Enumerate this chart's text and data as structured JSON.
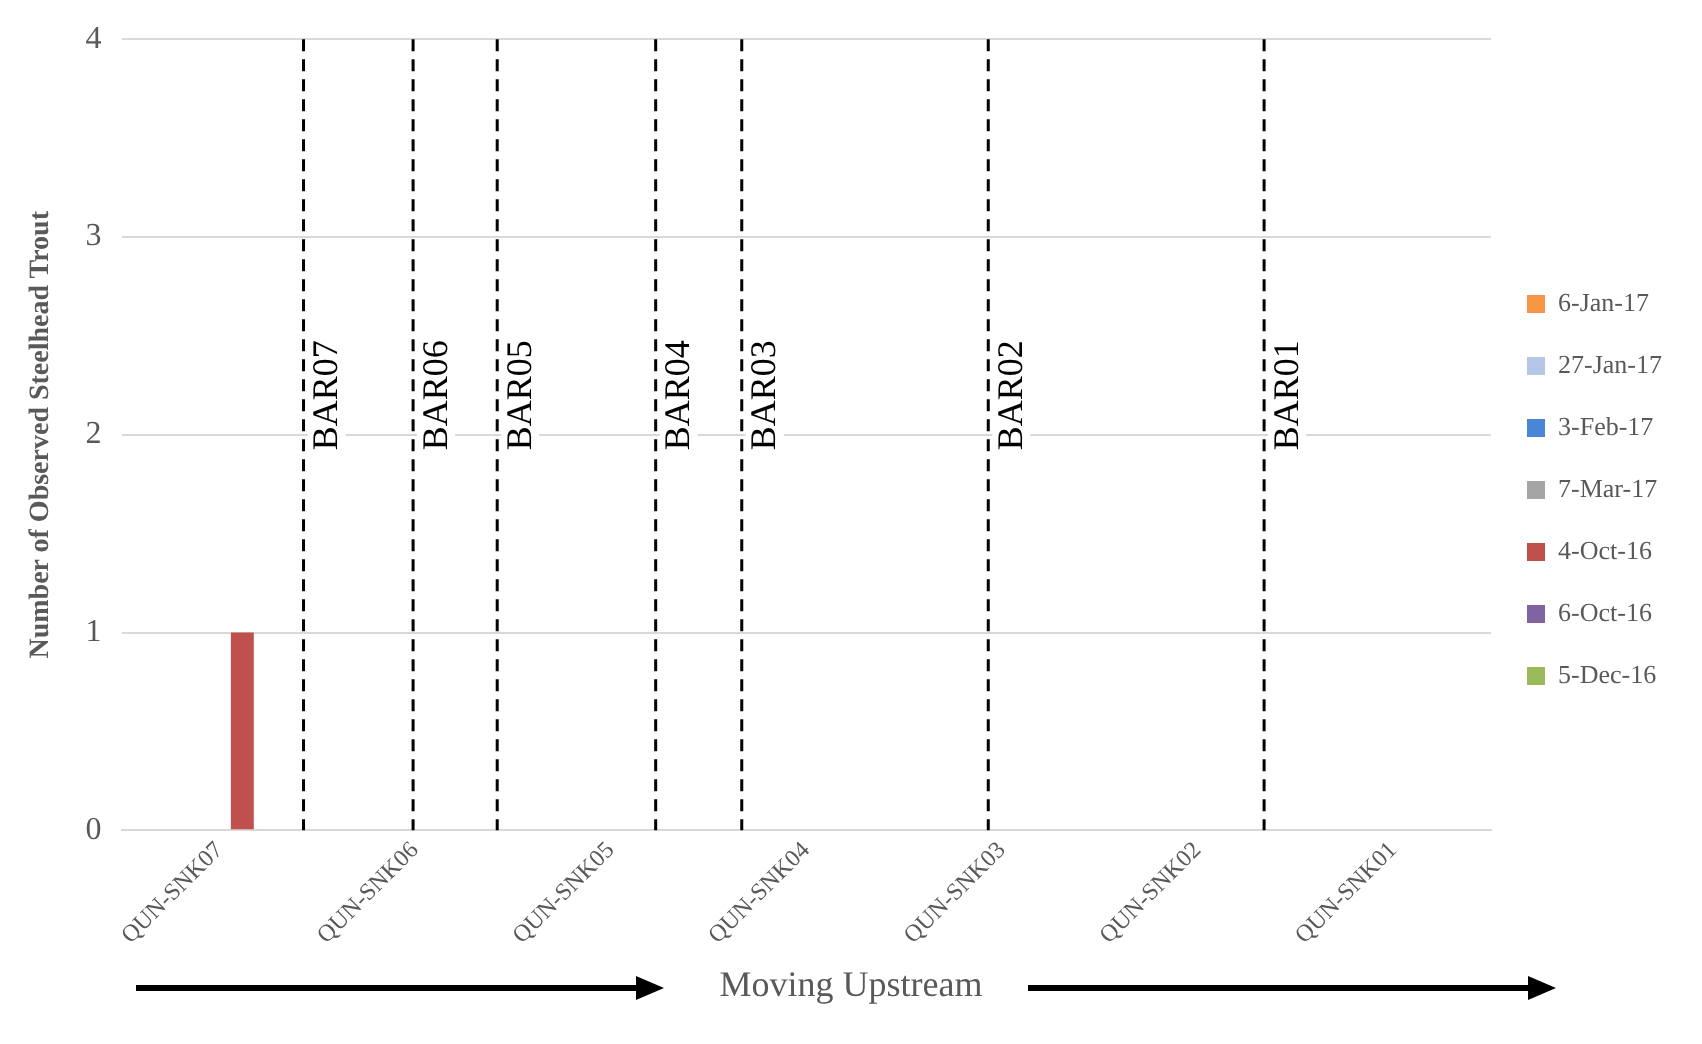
{
  "chart_data": {
    "type": "bar",
    "ylabel": "Number of Observed Steelhead Trout",
    "xlabel": "Moving Upstream",
    "categories": [
      "QUN-SNK07",
      "QUN-SNK06",
      "QUN-SNK05",
      "QUN-SNK04",
      "QUN-SNK03",
      "QUN-SNK02",
      "QUN-SNK01"
    ],
    "series": [
      {
        "name": "6-Jan-17",
        "color": "#f79646",
        "values": [
          0,
          0,
          0,
          0,
          0,
          0,
          0
        ]
      },
      {
        "name": "27-Jan-17",
        "color": "#b4c7e7",
        "values": [
          0,
          0,
          0,
          0,
          0,
          0,
          0
        ]
      },
      {
        "name": "3-Feb-17",
        "color": "#4a86d8",
        "values": [
          0,
          0,
          0,
          0,
          0,
          0,
          0
        ]
      },
      {
        "name": "7-Mar-17",
        "color": "#a5a5a5",
        "values": [
          0,
          0,
          0,
          0,
          0,
          0,
          0
        ]
      },
      {
        "name": "4-Oct-16",
        "color": "#c0504d",
        "values": [
          1,
          0,
          0,
          0,
          0,
          0,
          0
        ]
      },
      {
        "name": "6-Oct-16",
        "color": "#8064a2",
        "values": [
          0,
          0,
          0,
          0,
          0,
          0,
          0
        ]
      },
      {
        "name": "5-Dec-16",
        "color": "#9bbb59",
        "values": [
          0,
          0,
          0,
          0,
          0,
          0,
          0
        ]
      }
    ],
    "ylim": [
      0,
      4
    ],
    "yticks": [
      0,
      1,
      2,
      3,
      4
    ],
    "grid": "y",
    "legend": "right",
    "annotations": [
      "BAR07",
      "BAR06",
      "BAR05",
      "BAR04",
      "BAR03",
      "BAR02",
      "BAR01"
    ]
  }
}
